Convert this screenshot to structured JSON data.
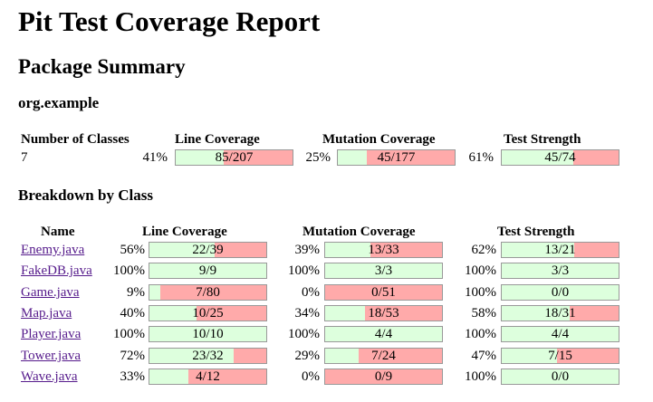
{
  "title": "Pit Test Coverage Report",
  "package_summary": {
    "heading": "Package Summary",
    "package_name": "org.example",
    "headers": {
      "classes": "Number of Classes",
      "line": "Line Coverage",
      "mutation": "Mutation Coverage",
      "strength": "Test Strength"
    },
    "row": {
      "classes": "7",
      "line_pct": "41%",
      "line_text": "85/207",
      "line_frac": 0.41,
      "mut_pct": "25%",
      "mut_text": "45/177",
      "mut_frac": 0.25,
      "str_pct": "61%",
      "str_text": "45/74",
      "str_frac": 0.61
    }
  },
  "breakdown": {
    "heading": "Breakdown by Class",
    "headers": {
      "name": "Name",
      "line": "Line Coverage",
      "mutation": "Mutation Coverage",
      "strength": "Test Strength"
    },
    "rows": [
      {
        "name": "Enemy.java",
        "line_pct": "56%",
        "line_text": "22/39",
        "line_frac": 0.56,
        "mut_pct": "39%",
        "mut_text": "13/33",
        "mut_frac": 0.39,
        "str_pct": "62%",
        "str_text": "13/21",
        "str_frac": 0.62
      },
      {
        "name": "FakeDB.java",
        "line_pct": "100%",
        "line_text": "9/9",
        "line_frac": 1.0,
        "mut_pct": "100%",
        "mut_text": "3/3",
        "mut_frac": 1.0,
        "str_pct": "100%",
        "str_text": "3/3",
        "str_frac": 1.0
      },
      {
        "name": "Game.java",
        "line_pct": "9%",
        "line_text": "7/80",
        "line_frac": 0.09,
        "mut_pct": "0%",
        "mut_text": "0/51",
        "mut_frac": 0.0,
        "str_pct": "100%",
        "str_text": "0/0",
        "str_frac": 1.0
      },
      {
        "name": "Map.java",
        "line_pct": "40%",
        "line_text": "10/25",
        "line_frac": 0.4,
        "mut_pct": "34%",
        "mut_text": "18/53",
        "mut_frac": 0.34,
        "str_pct": "58%",
        "str_text": "18/31",
        "str_frac": 0.58
      },
      {
        "name": "Player.java",
        "line_pct": "100%",
        "line_text": "10/10",
        "line_frac": 1.0,
        "mut_pct": "100%",
        "mut_text": "4/4",
        "mut_frac": 1.0,
        "str_pct": "100%",
        "str_text": "4/4",
        "str_frac": 1.0
      },
      {
        "name": "Tower.java",
        "line_pct": "72%",
        "line_text": "23/32",
        "line_frac": 0.72,
        "mut_pct": "29%",
        "mut_text": "7/24",
        "mut_frac": 0.29,
        "str_pct": "47%",
        "str_text": "7/15",
        "str_frac": 0.47
      },
      {
        "name": "Wave.java",
        "line_pct": "33%",
        "line_text": "4/12",
        "line_frac": 0.33,
        "mut_pct": "0%",
        "mut_text": "0/9",
        "mut_frac": 0.0,
        "str_pct": "100%",
        "str_text": "0/0",
        "str_frac": 1.0
      }
    ]
  },
  "colors": {
    "covered": "#ddffdd",
    "uncovered": "#ffaaaa",
    "link": "#551a8b"
  }
}
